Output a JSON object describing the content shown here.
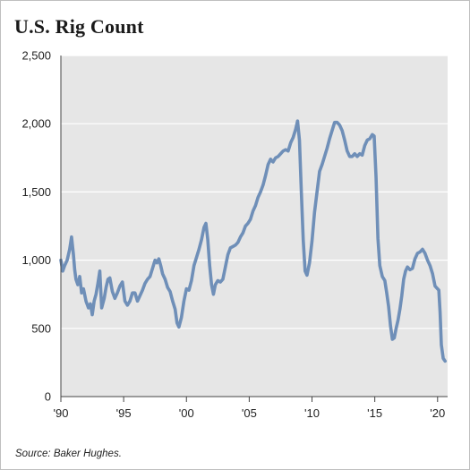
{
  "chart": {
    "title": "U.S. Rig Count",
    "source": "Source: Baker Hughes."
  },
  "colors": {
    "plot_background": "#e6e6e6",
    "series_line": "#6f8fb8",
    "gridline": "#ffffff",
    "axis": "#444444"
  },
  "chart_data": {
    "type": "line",
    "title": "U.S. Rig Count",
    "xlabel": "",
    "ylabel": "",
    "xlim": [
      1990,
      2020.8
    ],
    "ylim": [
      0,
      2500
    ],
    "y_ticks": [
      {
        "value": 0,
        "label": "0"
      },
      {
        "value": 500,
        "label": "500"
      },
      {
        "value": 1000,
        "label": "1,000"
      },
      {
        "value": 1500,
        "label": "1,500"
      },
      {
        "value": 2000,
        "label": "2,000"
      },
      {
        "value": 2500,
        "label": "2,500"
      }
    ],
    "x_ticks": [
      {
        "value": 1990,
        "label": "'90"
      },
      {
        "value": 1995,
        "label": "'95"
      },
      {
        "value": 2000,
        "label": "'00"
      },
      {
        "value": 2005,
        "label": "'05"
      },
      {
        "value": 2010,
        "label": "'10"
      },
      {
        "value": 2015,
        "label": "'15"
      },
      {
        "value": 2020,
        "label": "'20"
      }
    ],
    "grid": true,
    "legend": "none",
    "series": [
      {
        "x": [
          1990.0,
          1990.15,
          1990.3,
          1990.5,
          1990.7,
          1990.85,
          1991.0,
          1991.1,
          1991.2,
          1991.35,
          1991.5,
          1991.65,
          1991.8,
          1992.0,
          1992.2,
          1992.35,
          1992.5,
          1992.65,
          1992.8,
          1992.95,
          1993.1,
          1993.25,
          1993.45,
          1993.6,
          1993.75,
          1993.9,
          1994.1,
          1994.3,
          1994.5,
          1994.7,
          1994.9,
          1995.1,
          1995.3,
          1995.5,
          1995.7,
          1995.9,
          1996.1,
          1996.3,
          1996.5,
          1996.7,
          1996.9,
          1997.1,
          1997.3,
          1997.5,
          1997.65,
          1997.8,
          1997.95,
          1998.1,
          1998.3,
          1998.5,
          1998.7,
          1998.9,
          1999.1,
          1999.25,
          1999.4,
          1999.6,
          1999.8,
          2000.0,
          2000.2,
          2000.4,
          2000.6,
          2000.8,
          2001.0,
          2001.2,
          2001.4,
          2001.55,
          2001.7,
          2001.85,
          2002.0,
          2002.15,
          2002.3,
          2002.5,
          2002.7,
          2002.9,
          2003.1,
          2003.3,
          2003.5,
          2003.7,
          2003.9,
          2004.1,
          2004.3,
          2004.5,
          2004.7,
          2004.9,
          2005.1,
          2005.3,
          2005.5,
          2005.7,
          2005.9,
          2006.1,
          2006.3,
          2006.5,
          2006.7,
          2006.9,
          2007.1,
          2007.3,
          2007.5,
          2007.7,
          2007.9,
          2008.1,
          2008.3,
          2008.5,
          2008.7,
          2008.85,
          2009.0,
          2009.15,
          2009.3,
          2009.45,
          2009.6,
          2009.8,
          2010.0,
          2010.2,
          2010.4,
          2010.6,
          2010.8,
          2011.0,
          2011.2,
          2011.4,
          2011.6,
          2011.8,
          2012.0,
          2012.2,
          2012.4,
          2012.6,
          2012.8,
          2013.0,
          2013.2,
          2013.4,
          2013.6,
          2013.8,
          2014.0,
          2014.2,
          2014.4,
          2014.6,
          2014.8,
          2014.95,
          2015.1,
          2015.25,
          2015.4,
          2015.6,
          2015.8,
          2015.95,
          2016.1,
          2016.25,
          2016.4,
          2016.55,
          2016.7,
          2016.85,
          2017.0,
          2017.15,
          2017.3,
          2017.45,
          2017.6,
          2017.8,
          2018.0,
          2018.2,
          2018.4,
          2018.6,
          2018.8,
          2019.0,
          2019.2,
          2019.4,
          2019.6,
          2019.8,
          2020.0,
          2020.1,
          2020.2,
          2020.3,
          2020.45,
          2020.6
        ],
        "y": [
          1000,
          920,
          960,
          1000,
          1080,
          1170,
          1040,
          930,
          860,
          820,
          880,
          760,
          790,
          700,
          650,
          680,
          600,
          700,
          750,
          830,
          920,
          650,
          720,
          800,
          860,
          870,
          770,
          720,
          760,
          810,
          840,
          700,
          670,
          700,
          760,
          760,
          700,
          740,
          780,
          830,
          860,
          880,
          940,
          1000,
          980,
          1010,
          960,
          900,
          860,
          800,
          770,
          700,
          640,
          540,
          510,
          580,
          700,
          790,
          780,
          850,
          960,
          1020,
          1080,
          1150,
          1240,
          1270,
          1150,
          960,
          820,
          750,
          820,
          850,
          840,
          860,
          950,
          1040,
          1090,
          1100,
          1110,
          1130,
          1170,
          1200,
          1250,
          1270,
          1300,
          1360,
          1400,
          1460,
          1500,
          1550,
          1620,
          1700,
          1740,
          1720,
          1750,
          1760,
          1780,
          1800,
          1810,
          1800,
          1860,
          1900,
          1960,
          2020,
          1880,
          1500,
          1150,
          920,
          890,
          980,
          1140,
          1350,
          1500,
          1650,
          1700,
          1760,
          1820,
          1890,
          1950,
          2010,
          2010,
          1990,
          1950,
          1880,
          1800,
          1760,
          1760,
          1780,
          1760,
          1780,
          1770,
          1840,
          1880,
          1890,
          1920,
          1910,
          1610,
          1160,
          960,
          880,
          850,
          760,
          660,
          520,
          420,
          430,
          500,
          560,
          640,
          740,
          860,
          920,
          950,
          930,
          940,
          1010,
          1050,
          1060,
          1080,
          1050,
          1000,
          960,
          900,
          810,
          790,
          780,
          620,
          380,
          280,
          260
        ]
      }
    ]
  }
}
